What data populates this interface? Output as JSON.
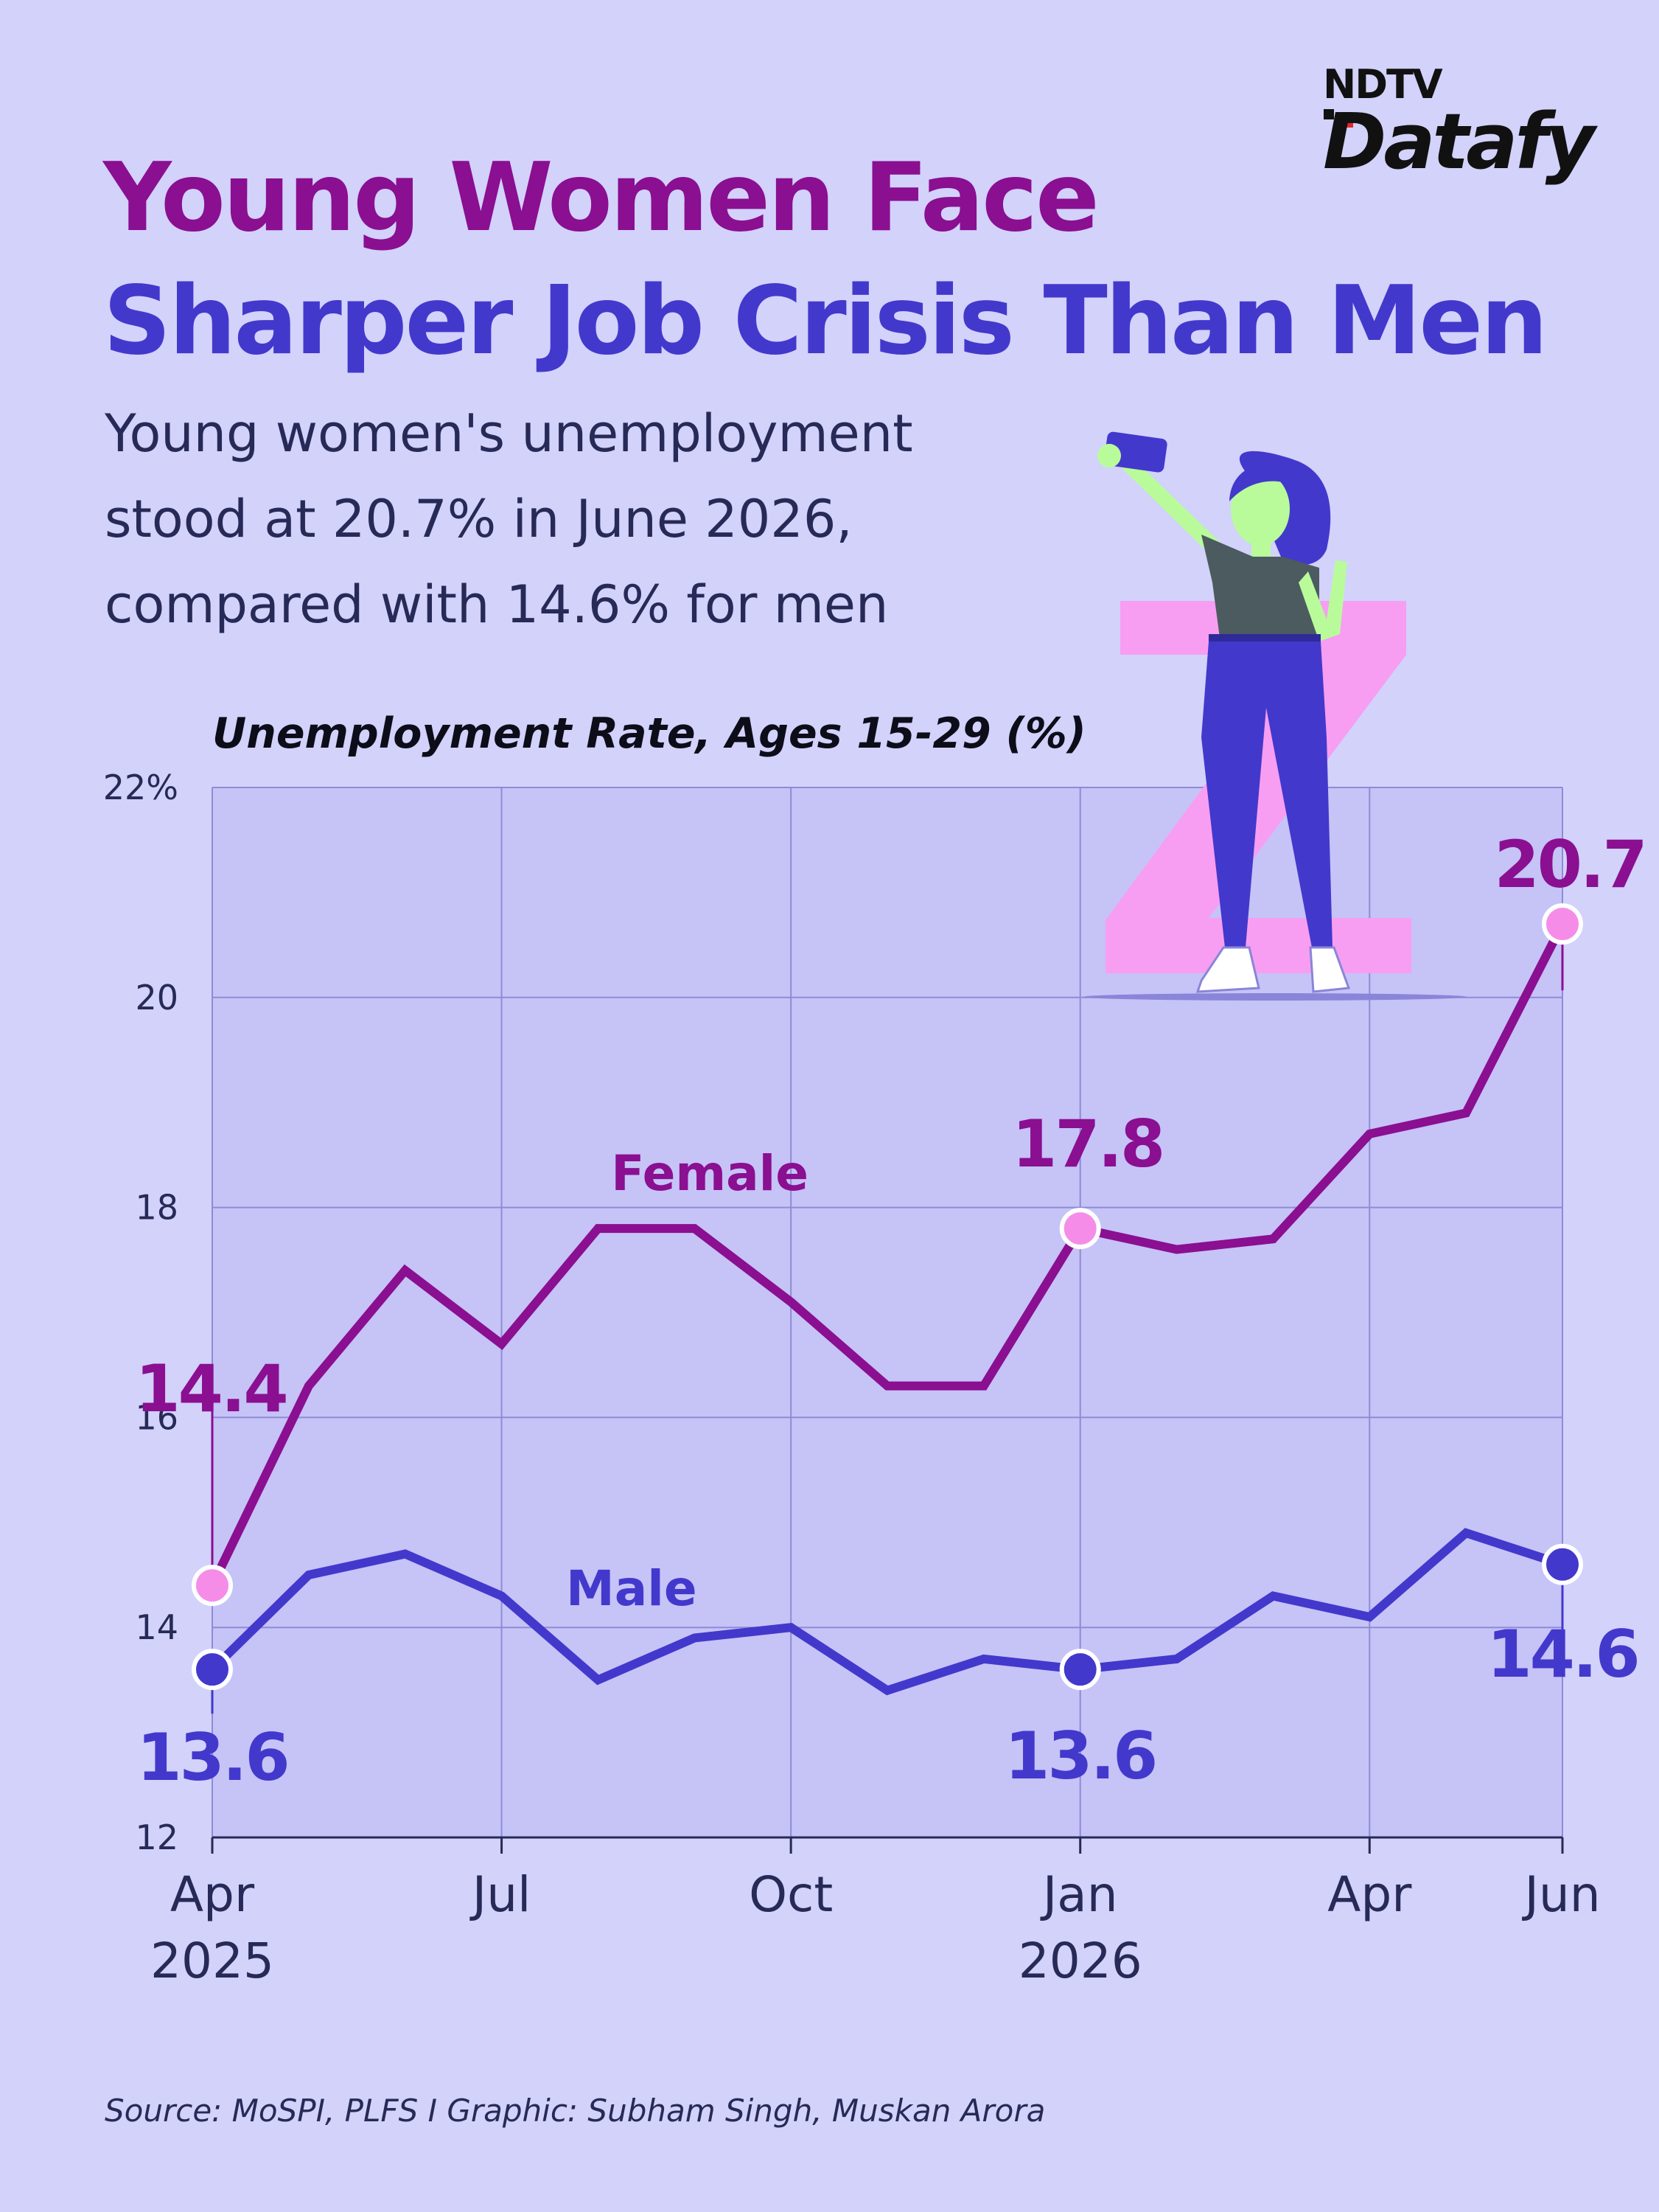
{
  "header": {
    "title_line1": "Young Women Face",
    "title_line2": "Sharper Job Crisis Than Men",
    "subtitle_line1": "Young women's unemployment",
    "subtitle_line2": "stood at 20.7% in June 2026,",
    "subtitle_line3": "compared with 14.6% for men"
  },
  "brand": {
    "top": "NDTV",
    "bottom": "Datafy"
  },
  "colors": {
    "female": "#8a0f91",
    "male": "#4338cc",
    "female_marker": "#f58de8",
    "plot_bg": "#c6c3f7",
    "background": "#d2d2fb"
  },
  "source": "Source: MoSPI, PLFS I Graphic: Subham Singh, Muskan Arora",
  "chart_data": {
    "type": "line",
    "title": "Unemployment Rate, Ages 15-29 (%)",
    "xlabel": "",
    "ylabel": "",
    "x": [
      "2025-04",
      "2025-05",
      "2025-06",
      "2025-07",
      "2025-08",
      "2025-09",
      "2025-10",
      "2025-11",
      "2025-12",
      "2026-01",
      "2026-02",
      "2026-03",
      "2026-04",
      "2026-05",
      "2026-06"
    ],
    "x_ticks": [
      {
        "x": "2025-04",
        "label": "Apr",
        "sublabel": "2025"
      },
      {
        "x": "2025-07",
        "label": "Jul",
        "sublabel": ""
      },
      {
        "x": "2025-10",
        "label": "Oct",
        "sublabel": ""
      },
      {
        "x": "2026-01",
        "label": "Jan",
        "sublabel": "2026"
      },
      {
        "x": "2026-04",
        "label": "Apr",
        "sublabel": ""
      },
      {
        "x": "2026-06",
        "label": "Jun",
        "sublabel": ""
      }
    ],
    "ylim": [
      12,
      22
    ],
    "y_ticks": [
      {
        "value": 12,
        "label": "12"
      },
      {
        "value": 14,
        "label": "14"
      },
      {
        "value": 16,
        "label": "16"
      },
      {
        "value": 18,
        "label": "18"
      },
      {
        "value": 20,
        "label": "20"
      },
      {
        "value": 22,
        "label": "22%"
      }
    ],
    "grid": true,
    "series": [
      {
        "name": "Female",
        "values": [
          14.4,
          16.3,
          17.4,
          16.7,
          17.8,
          17.8,
          17.1,
          16.3,
          16.3,
          17.8,
          17.6,
          17.7,
          18.7,
          18.9,
          20.7
        ],
        "labels": [
          {
            "index": 0,
            "text": "14.4"
          },
          {
            "index": 9,
            "text": "17.8"
          },
          {
            "index": 14,
            "text": "20.7"
          }
        ]
      },
      {
        "name": "Male",
        "values": [
          13.6,
          14.5,
          14.7,
          14.3,
          13.5,
          13.9,
          14.0,
          13.4,
          13.7,
          13.6,
          13.7,
          14.3,
          14.1,
          14.9,
          14.6
        ],
        "labels": [
          {
            "index": 0,
            "text": "13.6"
          },
          {
            "index": 9,
            "text": "13.6"
          },
          {
            "index": 14,
            "text": "14.6"
          }
        ]
      }
    ]
  }
}
